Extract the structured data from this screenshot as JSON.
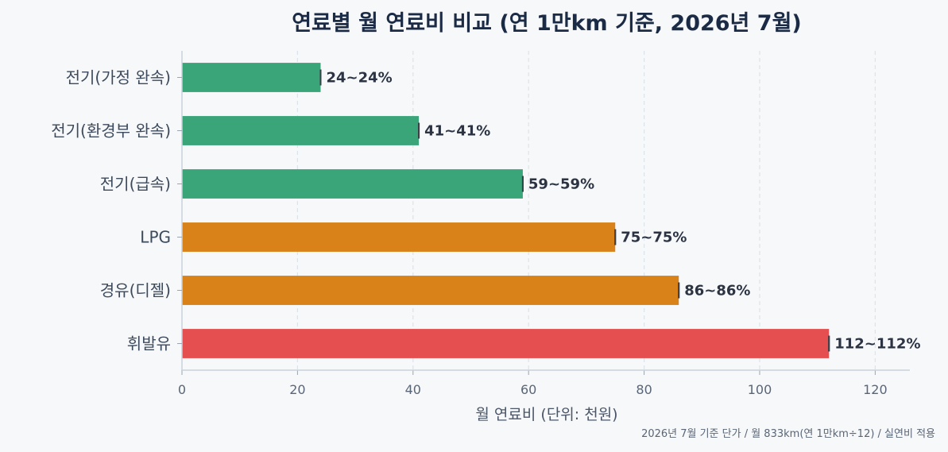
{
  "chart_data": {
    "type": "bar",
    "orientation": "horizontal",
    "title": "연료별 월 연료비 비교 (연 1만km 기준, 2026년 7월)",
    "xlabel": "월 연료비 (단위: 천원)",
    "ylabel": "",
    "xlim": [
      0,
      126
    ],
    "xticks": [
      0,
      20,
      40,
      60,
      80,
      100,
      120
    ],
    "grid": "x-dashed",
    "categories": [
      "전기(가정 완속)",
      "전기(환경부 완속)",
      "전기(급속)",
      "LPG",
      "경유(디젤)",
      "휘발유"
    ],
    "values": [
      24,
      41,
      59,
      75,
      86,
      112
    ],
    "range_low": [
      24,
      41,
      59,
      75,
      86,
      112
    ],
    "range_high": [
      24,
      41,
      59,
      75,
      86,
      112
    ],
    "data_labels": [
      "24~24%",
      "41~41%",
      "59~59%",
      "75~75%",
      "86~86%",
      "112~112%"
    ],
    "colors": [
      "#3ba57a",
      "#3ba57a",
      "#3ba57a",
      "#d9821a",
      "#d9821a",
      "#e54f4f"
    ],
    "footnote": "2026년 7월 기준 단가 / 월 833km(연 1만km÷12) / 실연비 적용"
  }
}
